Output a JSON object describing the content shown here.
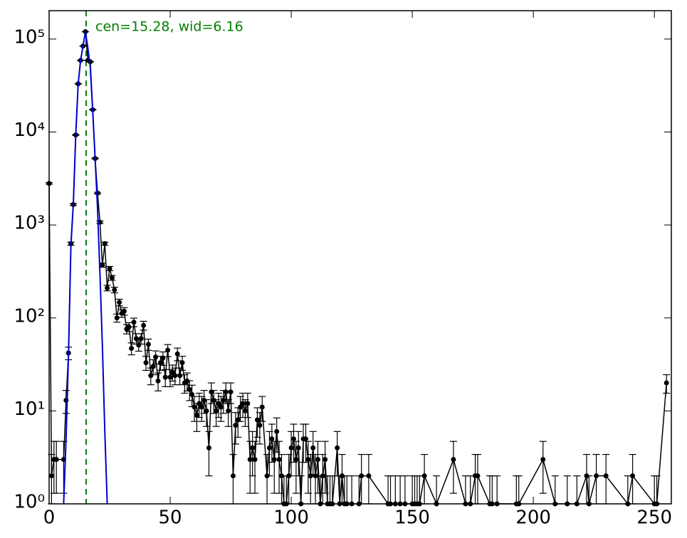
{
  "chart_data": {
    "type": "errorbar",
    "annotation": "cen=15.28, wid=6.16",
    "center_line": {
      "x": 15.28,
      "color": "#008000"
    },
    "log_y": true,
    "xlim": [
      0,
      257
    ],
    "ylim": [
      1,
      202000
    ],
    "xticks": [
      0,
      50,
      100,
      150,
      200,
      250
    ],
    "yticks": [
      {
        "value": 1,
        "label": "10⁰"
      },
      {
        "value": 10,
        "label": "10¹"
      },
      {
        "value": 100,
        "label": "10²"
      },
      {
        "value": 1000,
        "label": "10³"
      },
      {
        "value": 10000,
        "label": "10⁴"
      },
      {
        "value": 100000,
        "label": "10⁵"
      }
    ],
    "series": [
      {
        "kind": "data",
        "color": "#000000",
        "x": [
          0,
          1,
          2,
          3,
          6,
          7,
          8,
          9,
          10,
          11,
          12,
          13,
          14,
          15,
          16,
          17,
          18,
          19,
          20,
          21,
          22,
          23,
          24,
          25,
          26,
          27,
          28,
          29,
          30,
          31,
          32,
          33,
          34,
          35,
          36,
          37,
          38,
          39,
          40,
          41,
          42,
          43,
          44,
          45,
          46,
          47,
          48,
          49,
          50,
          51,
          52,
          53,
          54,
          55,
          56,
          57,
          58,
          59,
          60,
          61,
          62,
          63,
          64,
          65,
          66,
          67,
          68,
          69,
          70,
          71,
          72,
          73,
          74,
          75,
          76,
          77,
          78,
          79,
          80,
          81,
          82,
          83,
          84,
          85,
          86,
          87,
          88,
          90,
          91,
          92,
          93,
          94,
          95,
          96,
          97,
          98,
          99,
          100,
          101,
          102,
          103,
          104,
          105,
          106,
          107,
          108,
          109,
          110,
          111,
          112,
          113,
          114,
          115,
          116,
          117,
          119,
          120,
          121,
          122,
          123,
          125,
          128,
          129,
          132,
          140,
          141,
          143,
          145,
          147,
          150,
          151,
          152,
          153,
          155,
          160,
          167,
          172,
          174,
          176,
          177,
          182,
          183,
          185,
          193,
          194,
          204,
          209,
          214,
          218,
          222,
          223,
          226,
          230,
          239,
          241,
          250,
          251,
          255
        ],
        "values": [
          2800,
          2,
          3,
          3,
          3,
          13,
          42,
          630,
          1660,
          9300,
          33000,
          59000,
          84000,
          120000,
          59000,
          57000,
          17400,
          5200,
          2200,
          1070,
          370,
          630,
          210,
          340,
          270,
          200,
          100,
          147,
          112,
          118,
          76,
          80,
          47,
          90,
          60,
          51,
          60,
          83,
          33,
          52,
          24,
          30,
          38,
          21,
          33,
          37,
          23,
          45,
          23,
          26,
          24,
          41,
          24,
          33,
          20,
          21,
          17,
          15,
          11,
          9,
          12,
          11,
          13,
          10,
          4,
          16,
          13,
          10,
          12,
          11,
          13,
          16,
          10,
          16,
          2,
          7,
          8,
          11,
          12,
          10,
          12,
          3,
          4,
          3,
          8,
          7,
          11,
          2,
          4,
          5,
          3,
          6,
          3,
          2,
          1,
          1,
          2,
          4,
          5,
          3,
          4,
          1,
          5,
          5,
          3,
          2,
          4,
          2,
          3,
          1,
          2,
          3,
          1,
          1,
          1,
          4,
          1,
          2,
          1,
          1,
          1,
          1,
          2,
          2,
          1,
          1,
          1,
          1,
          1,
          1,
          1,
          1,
          1,
          2,
          1,
          3,
          1,
          1,
          2,
          2,
          1,
          1,
          1,
          1,
          1,
          3,
          1,
          1,
          1,
          2,
          1,
          2,
          2,
          1,
          2,
          1,
          1,
          20
        ],
        "errors": [
          53,
          1.4,
          1.7,
          1.7,
          1.7,
          3.6,
          6.5,
          25,
          41,
          96,
          182,
          243,
          290,
          346,
          243,
          239,
          132,
          72,
          47,
          33,
          19,
          25,
          14.5,
          18,
          16,
          14,
          10,
          12,
          10.6,
          10.9,
          8.7,
          8.9,
          6.9,
          9.5,
          7.7,
          7.1,
          7.7,
          9.1,
          5.7,
          7.2,
          4.9,
          5.5,
          6.2,
          4.6,
          5.7,
          6.1,
          4.8,
          6.7,
          4.8,
          5.1,
          4.9,
          6.4,
          4.9,
          5.7,
          4.5,
          4.6,
          4.1,
          3.9,
          3.3,
          3,
          3.5,
          3.3,
          3.6,
          3.2,
          2,
          4,
          3.6,
          3.2,
          3.5,
          3.3,
          3.6,
          4,
          3.2,
          4,
          1.4,
          2.6,
          2.8,
          3.3,
          3.5,
          3.2,
          3.5,
          1.7,
          2,
          1.7,
          2.8,
          2.6,
          3.3,
          1.4,
          2,
          2.2,
          1.7,
          2.4,
          1.7,
          1.4,
          1,
          1,
          1.4,
          2,
          2.2,
          1.7,
          2,
          1,
          2.2,
          2.2,
          1.7,
          1.4,
          2,
          1.4,
          1.7,
          1,
          1.4,
          1.7,
          1,
          1,
          1,
          2,
          1,
          1.4,
          1,
          1,
          1,
          1,
          1.4,
          1.4,
          1,
          1,
          1,
          1,
          1,
          1,
          1,
          1,
          1,
          1.4,
          1,
          1.7,
          1,
          1,
          1.4,
          1.4,
          1,
          1,
          1,
          1,
          1,
          1.7,
          1,
          1,
          1,
          1.4,
          1,
          1.4,
          1.4,
          1,
          1.4,
          1,
          1,
          4.5
        ]
      },
      {
        "kind": "fit",
        "color": "#0000cc",
        "x": [
          6,
          7,
          8,
          9,
          10,
          11,
          12,
          13,
          14,
          15,
          16,
          17,
          18,
          19,
          20,
          21,
          22,
          23,
          24
        ],
        "values": [
          1,
          5,
          40,
          600,
          1700,
          9300,
          33000,
          59000,
          84000,
          120000,
          80000,
          50000,
          17000,
          5200,
          1500,
          300,
          50,
          6,
          1
        ]
      }
    ]
  }
}
